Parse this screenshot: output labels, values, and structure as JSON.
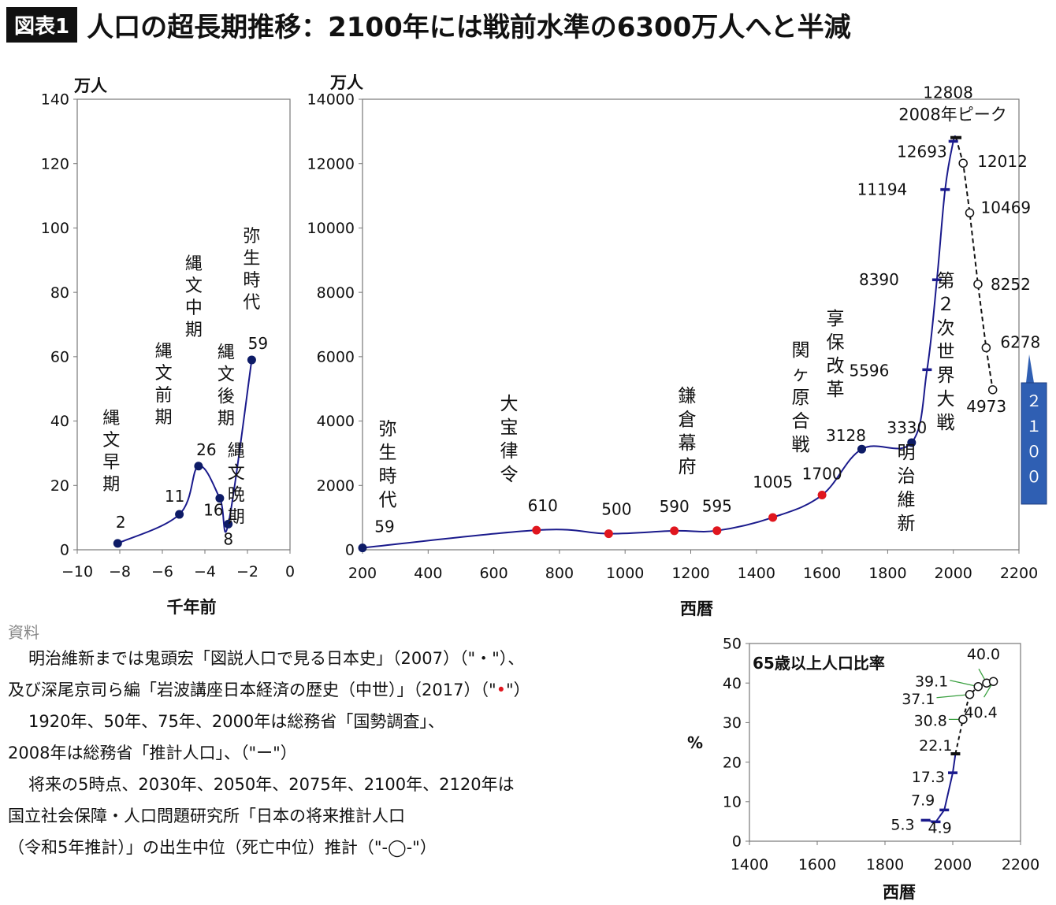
{
  "header": {
    "tag": "図表1",
    "title": "人口の超長期推移：2100年には戦前水準の6300万人へと半減"
  },
  "colors": {
    "line": "#1a1a8c",
    "marker": "#0d1b66",
    "red": "#e0161e",
    "future": "#111111",
    "leader": "#3aa040",
    "callout": "#2f5fb3"
  },
  "chart_data": [
    {
      "id": "ancient",
      "type": "line",
      "ylabel": "万人",
      "xlabel": "千年前",
      "xlim": [
        -10,
        0
      ],
      "ylim": [
        0,
        140
      ],
      "xticks": [
        "−10",
        "−8",
        "−6",
        "−4",
        "−2",
        "0"
      ],
      "yticks": [
        "0",
        "20",
        "40",
        "60",
        "80",
        "100",
        "120",
        "140"
      ],
      "points": [
        {
          "x": -8.1,
          "y": 2,
          "value": "2",
          "period": "縄文早期"
        },
        {
          "x": -5.2,
          "y": 11,
          "value": "11",
          "period": "縄文前期"
        },
        {
          "x": -4.3,
          "y": 26,
          "value": "26",
          "period": "縄文中期"
        },
        {
          "x": -3.3,
          "y": 16,
          "value": "16",
          "period": "縄文後期"
        },
        {
          "x": -2.9,
          "y": 8,
          "value": "8",
          "period": "縄文晩期"
        },
        {
          "x": -1.8,
          "y": 59,
          "value": "59",
          "period": "弥生時代"
        }
      ]
    },
    {
      "id": "historical",
      "type": "line",
      "ylabel": "万人",
      "xlabel": "西暦",
      "xlim": [
        200,
        2200
      ],
      "ylim": [
        0,
        14000
      ],
      "xticks": [
        "200",
        "400",
        "600",
        "800",
        "1000",
        "1200",
        "1400",
        "1600",
        "1800",
        "2000",
        "2200"
      ],
      "yticks": [
        "0",
        "2000",
        "4000",
        "6000",
        "8000",
        "10000",
        "12000",
        "14000"
      ],
      "series": [
        {
          "name": "鬼頭宏",
          "marker": "dot",
          "points": [
            {
              "x": 200,
              "y": 59,
              "label": "59"
            },
            {
              "x": 1721,
              "y": 3128,
              "label": "3128"
            },
            {
              "x": 1873,
              "y": 3330,
              "label": "3330"
            }
          ]
        },
        {
          "name": "深尾京司ら",
          "marker": "reddot",
          "points": [
            {
              "x": 730,
              "y": 610,
              "label": "610"
            },
            {
              "x": 950,
              "y": 500,
              "label": "500"
            },
            {
              "x": 1150,
              "y": 590,
              "label": "590"
            },
            {
              "x": 1280,
              "y": 595,
              "label": "595"
            },
            {
              "x": 1450,
              "y": 1005,
              "label": "1005"
            },
            {
              "x": 1600,
              "y": 1700,
              "label": "1700"
            }
          ]
        },
        {
          "name": "国勢調査",
          "marker": "dash",
          "points": [
            {
              "x": 1920,
              "y": 5596,
              "label": "5596"
            },
            {
              "x": 1950,
              "y": 8390,
              "label": "8390"
            },
            {
              "x": 1975,
              "y": 11194,
              "label": "11194"
            },
            {
              "x": 2000,
              "y": 12693,
              "label": "12693"
            }
          ]
        },
        {
          "name": "推計人口",
          "marker": "dash-bold",
          "points": [
            {
              "x": 2008,
              "y": 12808,
              "label": "12808"
            }
          ]
        },
        {
          "name": "将来推計",
          "marker": "circle",
          "points": [
            {
              "x": 2030,
              "y": 12012,
              "label": "12012"
            },
            {
              "x": 2050,
              "y": 10469,
              "label": "10469"
            },
            {
              "x": 2075,
              "y": 8252,
              "label": "8252"
            },
            {
              "x": 2100,
              "y": 6278,
              "label": "6278"
            },
            {
              "x": 2120,
              "y": 4973,
              "label": "4973"
            }
          ]
        }
      ],
      "annotations": [
        {
          "text": "弥生時代"
        },
        {
          "text": "大宝律令"
        },
        {
          "text": "鎌倉幕府"
        },
        {
          "text": "関ヶ原合戦"
        },
        {
          "text": "享保改革"
        },
        {
          "text": "明治維新"
        },
        {
          "text": "第２次世界大戦"
        }
      ],
      "peak_label": "2008年ピーク",
      "callout": "２１００"
    },
    {
      "id": "elderly",
      "type": "line",
      "title": "65歳以上人口比率",
      "ylabel": "%",
      "xlabel": "西暦",
      "xlim": [
        1400,
        2200
      ],
      "ylim": [
        0,
        50
      ],
      "xticks": [
        "1400",
        "1600",
        "1800",
        "2000",
        "2200"
      ],
      "yticks": [
        "0",
        "10",
        "20",
        "30",
        "40",
        "50"
      ],
      "series": [
        {
          "name": "国勢調査",
          "marker": "dash",
          "points": [
            {
              "x": 1920,
              "y": 5.3,
              "label": "5.3"
            },
            {
              "x": 1950,
              "y": 4.9,
              "label": "4.9"
            },
            {
              "x": 1975,
              "y": 7.9,
              "label": "7.9"
            },
            {
              "x": 2000,
              "y": 17.3,
              "label": "17.3"
            }
          ]
        },
        {
          "name": "推計人口",
          "marker": "dash-bold",
          "points": [
            {
              "x": 2008,
              "y": 22.1,
              "label": "22.1"
            }
          ]
        },
        {
          "name": "将来推計",
          "marker": "circle",
          "points": [
            {
              "x": 2030,
              "y": 30.8,
              "label": "30.8"
            },
            {
              "x": 2050,
              "y": 37.1,
              "label": "37.1"
            },
            {
              "x": 2075,
              "y": 39.1,
              "label": "39.1"
            },
            {
              "x": 2100,
              "y": 40.0,
              "label": "40.0"
            },
            {
              "x": 2120,
              "y": 40.4,
              "label": "40.4"
            }
          ]
        }
      ]
    }
  ],
  "sources": {
    "label": "資料",
    "line1": "明治維新までは鬼頭宏「図説人口で見る日本史」（2007）（\"・\"）、",
    "line2a": "及び深尾京司ら編「岩波講座日本経済の歴史（中世）」（2017）（\"",
    "line2dot": "•",
    "line2b": "\"）",
    "line3": "1920年、50年、75年、2000年は総務省「国勢調査」、",
    "line4": "2008年は総務省「推計人口」、（\"ー\"）",
    "line5": "将来の5時点、2030年、2050年、2075年、2100年、2120年は",
    "line6": "国立社会保障・人口問題研究所「日本の将来推計人口",
    "line7": "（令和5年推計）」の出生中位（死亡中位）推計（\"-◯-\"）"
  }
}
